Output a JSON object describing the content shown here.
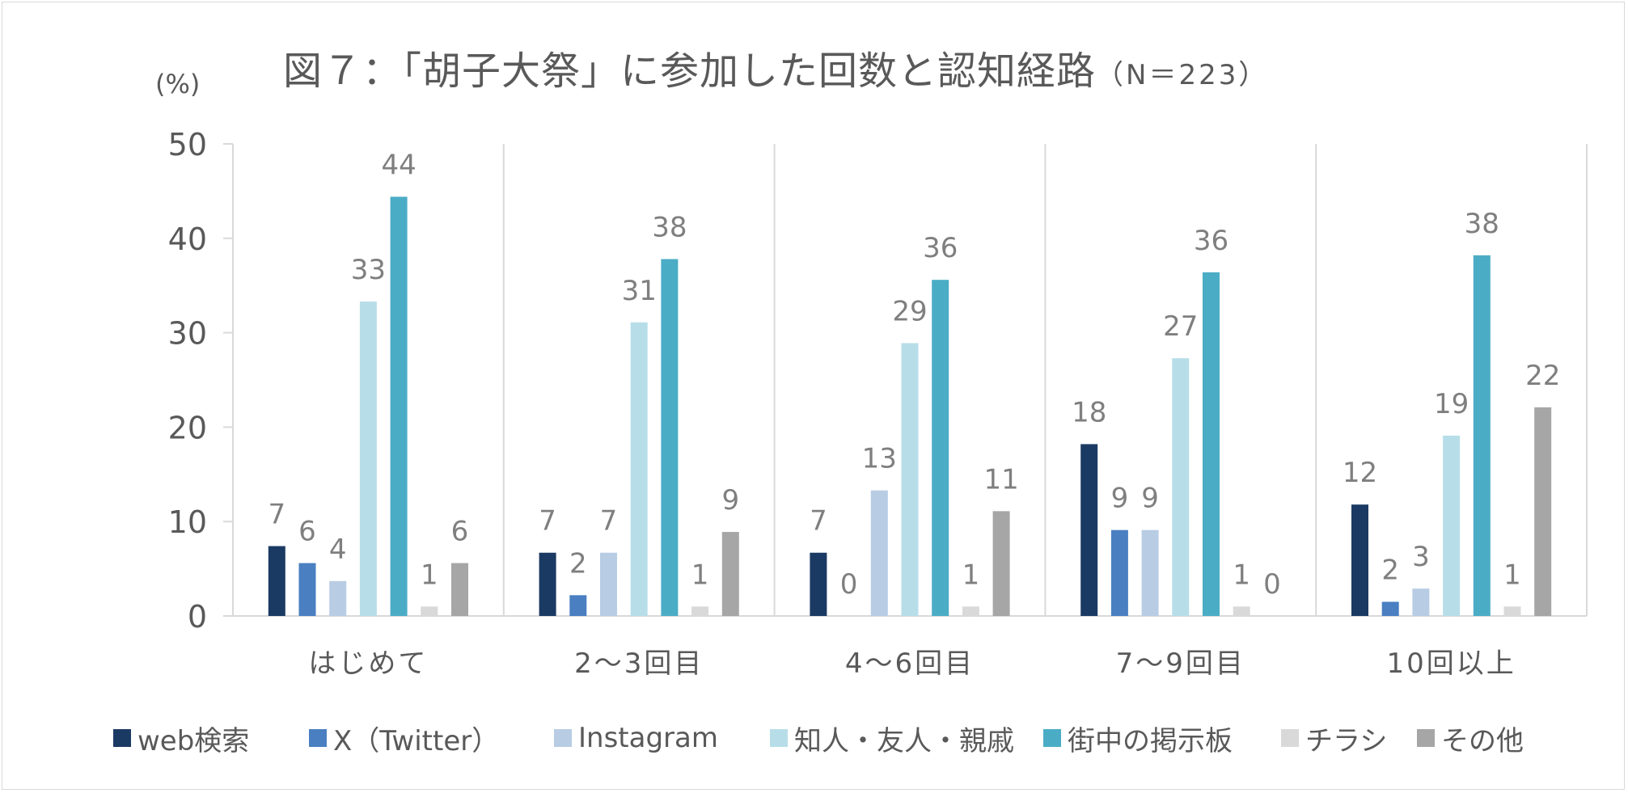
{
  "title": {
    "main": "図７：「胡子大祭」に参加した回数と認知経路",
    "sub": "（N＝223）"
  },
  "y_unit": "(%)",
  "chart_data": {
    "type": "bar",
    "title": "図７：「胡子大祭」に参加した回数と認知経路（N＝223）",
    "xlabel": "",
    "ylabel": "(%)",
    "ylim": [
      0,
      50
    ],
    "yticks": [
      0,
      10,
      20,
      30,
      40,
      50
    ],
    "grid": false,
    "legend_position": "bottom",
    "categories": [
      "はじめて",
      "2～3回目",
      "4～6回目",
      "7～9回目",
      "10回以上"
    ],
    "series": [
      {
        "name": "web検索",
        "color": "#1b3a63",
        "values": [
          7.4,
          6.7,
          6.7,
          18.2,
          11.8
        ],
        "labels": [
          "7",
          "7",
          "7",
          "18",
          "12"
        ]
      },
      {
        "name": "X（Twitter）",
        "color": "#4a7fc1",
        "values": [
          5.6,
          2.2,
          0,
          9.1,
          1.5
        ],
        "labels": [
          "6",
          "2",
          "0",
          "9",
          "2"
        ]
      },
      {
        "name": "Instagram",
        "color": "#b8cce4",
        "values": [
          3.7,
          6.7,
          13.3,
          9.1,
          2.9
        ],
        "labels": [
          "4",
          "7",
          "13",
          "9",
          "3"
        ]
      },
      {
        "name": "知人・友人・親戚",
        "color": "#b7dee8",
        "values": [
          33.3,
          31.1,
          28.9,
          27.3,
          19.1
        ],
        "labels": [
          "33",
          "31",
          "29",
          "27",
          "19"
        ]
      },
      {
        "name": "街中の掲示板",
        "color": "#4bacc6",
        "values": [
          44.4,
          37.8,
          35.6,
          36.4,
          38.2
        ],
        "labels": [
          "44",
          "38",
          "36",
          "36",
          "38"
        ]
      },
      {
        "name": "チラシ",
        "color": "#d9d9d9",
        "values": [
          1,
          1,
          1,
          1,
          1
        ],
        "labels": [
          "1",
          "1",
          "1",
          "1",
          "1"
        ]
      },
      {
        "name": "その他",
        "color": "#a6a6a6",
        "values": [
          5.6,
          8.9,
          11.1,
          0,
          22.1
        ],
        "labels": [
          "6",
          "9",
          "11",
          "0",
          "22"
        ]
      }
    ]
  }
}
